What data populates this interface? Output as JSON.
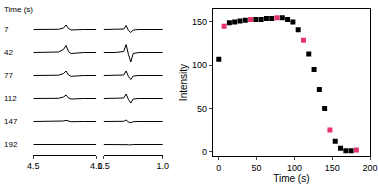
{
  "chart_data": [
    {
      "type": "line",
      "annotation": "Time (s)",
      "color": "#000000",
      "tick_labels": "x",
      "ylim": [
        -1,
        1
      ],
      "panels": [
        {
          "x": [
            4.5,
            4.4,
            4.3,
            4.26,
            4.24,
            4.22,
            4.2,
            4.1,
            4.0
          ],
          "xlim": [
            4.5,
            4.0
          ],
          "xticks": [
            4.5,
            {
              "value": 4,
              "label": "4.0"
            }
          ]
        },
        {
          "x": [
            1.5,
            1.4,
            1.33,
            1.31,
            1.29,
            1.27,
            1.25,
            1.2,
            1.0
          ],
          "xlim": [
            1.5,
            1.0
          ],
          "xticks": [
            1.5,
            {
              "value": 1,
              "label": "1.0"
            }
          ]
        }
      ],
      "series": [
        {
          "name": "7",
          "values": [
            [
              0,
              0,
              0.02,
              0.15,
              0.45,
              0.1,
              -0.05,
              0,
              0
            ],
            [
              0,
              0,
              0.05,
              0.4,
              -0.1,
              -0.3,
              -0.05,
              0,
              0
            ]
          ]
        },
        {
          "name": "42",
          "values": [
            [
              0,
              0,
              0.05,
              0.3,
              0.7,
              0.1,
              -0.1,
              0,
              0
            ],
            [
              0,
              0,
              0.1,
              0.8,
              -0.2,
              -0.95,
              -0.1,
              0,
              0
            ]
          ]
        },
        {
          "name": "77",
          "values": [
            [
              0,
              0,
              0.03,
              0.2,
              0.45,
              0.05,
              -0.08,
              0,
              0
            ],
            [
              0,
              0,
              0.05,
              0.45,
              -0.1,
              -0.4,
              -0.05,
              0,
              0
            ]
          ]
        },
        {
          "name": "112",
          "values": [
            [
              0,
              0,
              0.02,
              0.15,
              0.35,
              0.05,
              -0.05,
              0,
              0
            ],
            [
              0,
              0,
              0.05,
              0.45,
              -0.1,
              -0.45,
              -0.05,
              0,
              0
            ]
          ]
        },
        {
          "name": "147",
          "values": [
            [
              0,
              0,
              0.01,
              0.05,
              0.12,
              0.02,
              -0.02,
              0,
              0
            ],
            [
              0,
              0,
              0.02,
              0.15,
              -0.05,
              -0.12,
              -0.02,
              0,
              0
            ]
          ]
        },
        {
          "name": "192",
          "values": [
            [
              0,
              0,
              0,
              0,
              0,
              0,
              0,
              0,
              0
            ],
            [
              0,
              0,
              0.01,
              0.05,
              -0.02,
              -0.04,
              0,
              0,
              0
            ]
          ]
        }
      ]
    },
    {
      "type": "scatter",
      "xlabel": "Time (s)",
      "ylabel": "Intensity",
      "marker": "square",
      "x": [
        0,
        7,
        14,
        21,
        28,
        35,
        42,
        49,
        56,
        63,
        70,
        77,
        84,
        91,
        98,
        105,
        112,
        119,
        126,
        133,
        140,
        147,
        154,
        161,
        168,
        175,
        182
      ],
      "values": [
        107,
        145,
        149,
        150,
        151,
        152,
        153,
        153,
        153,
        154,
        154,
        155,
        155,
        153,
        150,
        141,
        129,
        113,
        95,
        72,
        50,
        25,
        12,
        4,
        1,
        1,
        2
      ],
      "colors": [
        "#000000",
        "#e8336b",
        "#000000",
        "#000000",
        "#000000",
        "#000000",
        "#e8336b",
        "#000000",
        "#000000",
        "#000000",
        "#000000",
        "#e8336b",
        "#000000",
        "#000000",
        "#000000",
        "#000000",
        "#e8336b",
        "#000000",
        "#000000",
        "#000000",
        "#000000",
        "#e8336b",
        "#000000",
        "#000000",
        "#000000",
        "#000000",
        "#e8336b"
      ],
      "xlim": [
        -8,
        200
      ],
      "xticks": [
        0,
        50,
        100,
        150,
        200
      ],
      "ylim": [
        -5,
        165
      ],
      "yticks": [
        0,
        50,
        100,
        150
      ]
    }
  ]
}
